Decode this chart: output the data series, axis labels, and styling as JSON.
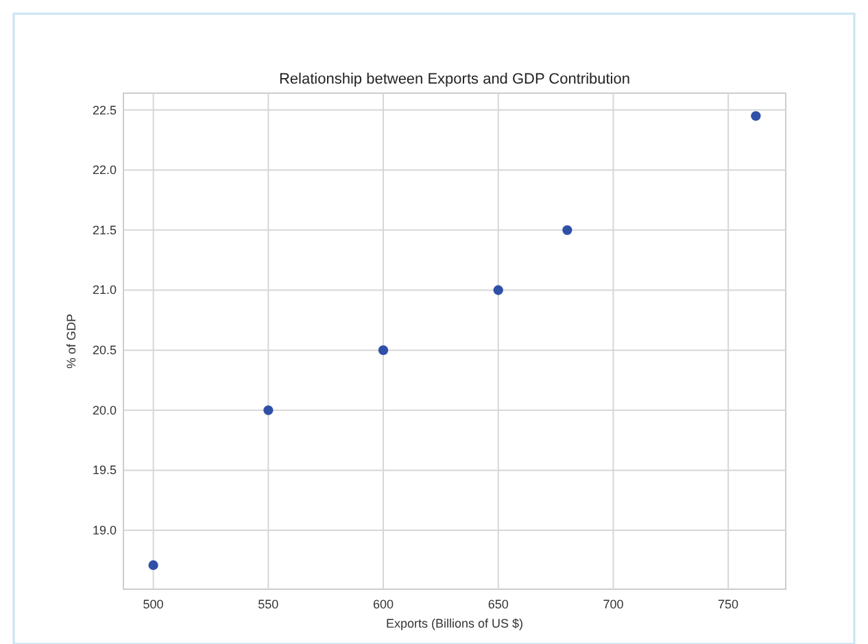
{
  "chart_data": {
    "type": "scatter",
    "title": "Relationship between Exports and GDP Contribution",
    "xlabel": "Exports (Billions of US $)",
    "ylabel": "% of GDP",
    "x": [
      500,
      550,
      600,
      650,
      680,
      762
    ],
    "series": [
      {
        "color": "#3050a8",
        "values": [
          18.71,
          20.0,
          20.5,
          21.0,
          21.5,
          22.45
        ]
      }
    ],
    "xlim": [
      487,
      775
    ],
    "ylim": [
      18.51,
      22.64
    ],
    "xticks": [
      500,
      550,
      600,
      650,
      700,
      750
    ],
    "yticks": [
      {
        "value": 19,
        "label": "19.0"
      },
      19.5,
      {
        "value": 20,
        "label": "20.0"
      },
      20.5,
      {
        "value": 21,
        "label": "21.0"
      },
      21.5,
      {
        "value": 22,
        "label": "22.0"
      },
      22.5
    ],
    "grid": true,
    "marker": "circle"
  }
}
